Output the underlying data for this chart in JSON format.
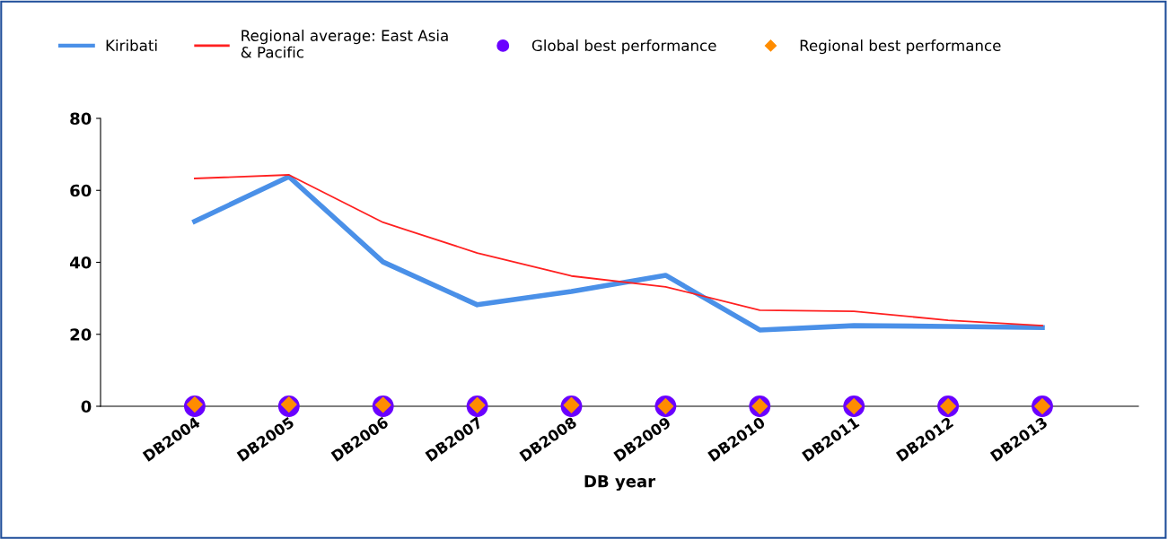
{
  "chart_data": {
    "type": "line",
    "xlabel": "DB year",
    "categories": [
      "DB2004",
      "DB2005",
      "DB2006",
      "DB2007",
      "DB2008",
      "DB2009",
      "DB2010",
      "DB2011",
      "DB2012",
      "DB2013"
    ],
    "series": [
      {
        "name": "Kiribati",
        "color": "#4a90e8",
        "values": [
          51.4,
          63.8,
          40.1,
          28.2,
          31.9,
          36.4,
          21.2,
          22.4,
          22.2,
          21.9
        ]
      },
      {
        "name": "Regional average: East Asia\n& Pacific",
        "color": "#ff2020",
        "values": [
          63.3,
          64.3,
          51.1,
          42.6,
          36.2,
          33.2,
          26.7,
          26.4,
          23.9,
          22.4
        ]
      },
      {
        "name": "Global best performance",
        "type": "scatter",
        "marker": "circle",
        "color": "#6a00ff",
        "values": [
          0,
          0,
          0,
          0,
          0,
          0,
          0,
          0,
          0,
          0
        ]
      },
      {
        "name": "Regional best performance",
        "type": "scatter",
        "marker": "diamond",
        "color": "#ff8c00",
        "values": [
          0.5,
          0.5,
          0.4,
          0.3,
          0.3,
          0,
          0,
          0,
          0,
          0
        ]
      }
    ],
    "ylim": [
      0,
      80
    ],
    "yticks": [
      0,
      20,
      40,
      60,
      80
    ],
    "grid": false,
    "legend": "top"
  }
}
